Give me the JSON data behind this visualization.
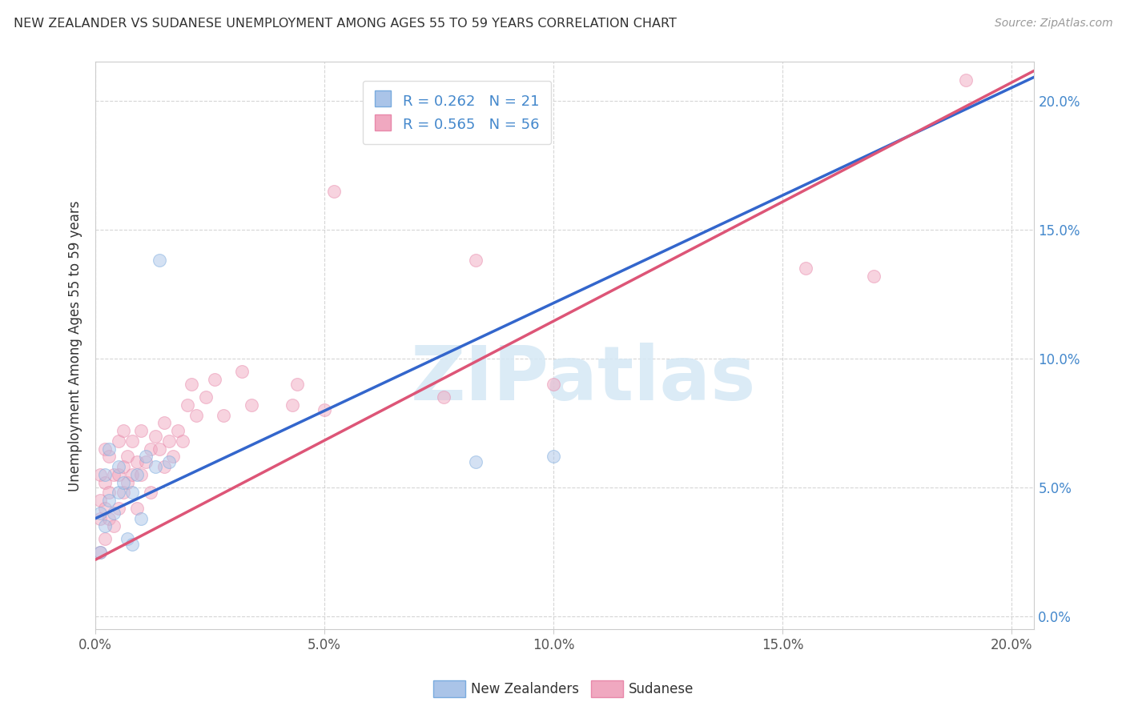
{
  "title": "NEW ZEALANDER VS SUDANESE UNEMPLOYMENT AMONG AGES 55 TO 59 YEARS CORRELATION CHART",
  "source": "Source: ZipAtlas.com",
  "ylabel": "Unemployment Among Ages 55 to 59 years",
  "xlim": [
    0,
    0.205
  ],
  "ylim": [
    -0.005,
    0.215
  ],
  "tick_vals": [
    0.0,
    0.05,
    0.1,
    0.15,
    0.2
  ],
  "tick_labels": [
    "0.0%",
    "5.0%",
    "10.0%",
    "15.0%",
    "20.0%"
  ],
  "nz_color": "#aac4e8",
  "sudanese_color": "#f0a8c0",
  "nz_edge_color": "#7aabde",
  "sudanese_edge_color": "#e888aa",
  "nz_R": 0.262,
  "nz_N": 21,
  "sudanese_R": 0.565,
  "sudanese_N": 56,
  "legend_label_nz": "New Zealanders",
  "legend_label_sudanese": "Sudanese",
  "nz_line_color": "#3366cc",
  "sudanese_line_color": "#dd5577",
  "watermark_text": "ZIPatlas",
  "watermark_color": "#d5e8f5",
  "nz_x": [
    0.001,
    0.001,
    0.002,
    0.002,
    0.003,
    0.003,
    0.004,
    0.005,
    0.005,
    0.006,
    0.007,
    0.008,
    0.008,
    0.009,
    0.01,
    0.011,
    0.013,
    0.014,
    0.016,
    0.083,
    0.1
  ],
  "nz_y": [
    0.025,
    0.04,
    0.035,
    0.055,
    0.045,
    0.065,
    0.04,
    0.048,
    0.058,
    0.052,
    0.03,
    0.028,
    0.048,
    0.055,
    0.038,
    0.062,
    0.058,
    0.138,
    0.06,
    0.06,
    0.062
  ],
  "sud_x": [
    0.001,
    0.001,
    0.001,
    0.001,
    0.002,
    0.002,
    0.002,
    0.002,
    0.003,
    0.003,
    0.003,
    0.004,
    0.004,
    0.005,
    0.005,
    0.005,
    0.006,
    0.006,
    0.006,
    0.007,
    0.007,
    0.008,
    0.008,
    0.009,
    0.009,
    0.01,
    0.01,
    0.011,
    0.012,
    0.012,
    0.013,
    0.014,
    0.015,
    0.015,
    0.016,
    0.017,
    0.018,
    0.019,
    0.02,
    0.021,
    0.022,
    0.024,
    0.026,
    0.028,
    0.032,
    0.034,
    0.043,
    0.044,
    0.05,
    0.052,
    0.076,
    0.083,
    0.1,
    0.155,
    0.17,
    0.19
  ],
  "sud_y": [
    0.025,
    0.038,
    0.045,
    0.055,
    0.03,
    0.042,
    0.052,
    0.065,
    0.038,
    0.048,
    0.062,
    0.035,
    0.055,
    0.042,
    0.055,
    0.068,
    0.048,
    0.058,
    0.072,
    0.052,
    0.062,
    0.055,
    0.068,
    0.042,
    0.06,
    0.055,
    0.072,
    0.06,
    0.048,
    0.065,
    0.07,
    0.065,
    0.058,
    0.075,
    0.068,
    0.062,
    0.072,
    0.068,
    0.082,
    0.09,
    0.078,
    0.085,
    0.092,
    0.078,
    0.095,
    0.082,
    0.082,
    0.09,
    0.08,
    0.165,
    0.085,
    0.138,
    0.09,
    0.135,
    0.132,
    0.208
  ]
}
